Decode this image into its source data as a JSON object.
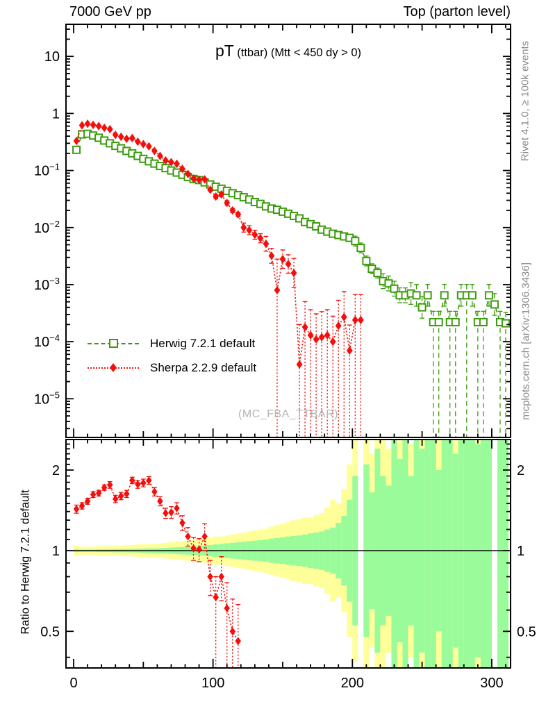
{
  "header": {
    "left": "7000 GeV pp",
    "right": "Top (parton level)"
  },
  "title": {
    "main": "pT",
    "sub": "(ttbar) (Mtt < 450 dy > 0)"
  },
  "watermark": "(MC_FBA_TTBAR)",
  "ratio_axis_label": "Ratio to Herwig 7.2.1 default",
  "side": {
    "rivet": "Rivet 4.1.0, ≥ 100k events",
    "mcplots": "mcplots.cern.ch [arXiv:1306.3436]"
  },
  "legend": {
    "items": [
      {
        "label": "Herwig 7.2.1 default",
        "marker": "open-square",
        "line": "dashed",
        "color": "#3c9b0d"
      },
      {
        "label": "Sherpa 2.2.9 default",
        "marker": "filled-diamond",
        "line": "dotted",
        "color": "#f20f0c"
      }
    ]
  },
  "chart_data": {
    "type": "scatter",
    "title": "pT (ttbar) (Mtt < 450 dy > 0)",
    "xlabel": "",
    "ylabel": "",
    "xlim": [
      -5.5,
      313.5
    ],
    "x_major_ticks": [
      0,
      100,
      200,
      300
    ],
    "x_minor_step": 10,
    "main_panel": {
      "yscale": "log",
      "ylim": [
        2.1e-06,
        36.5
      ],
      "y_tick_labels": [
        {
          "v": 10,
          "base": "10",
          "exp": ""
        },
        {
          "v": 1,
          "base": "1",
          "exp": ""
        },
        {
          "v": 0.1,
          "base": "10",
          "exp": "−1"
        },
        {
          "v": 0.01,
          "base": "10",
          "exp": "−2"
        },
        {
          "v": 0.001,
          "base": "10",
          "exp": "−3"
        },
        {
          "v": 0.0001,
          "base": "10",
          "exp": "−4"
        },
        {
          "v": 1e-05,
          "base": "10",
          "exp": "−5"
        }
      ]
    },
    "bin_width": 4,
    "series": [
      {
        "name": "Herwig 7.2.1 default",
        "color": "#3c9b0d",
        "marker": "open-square",
        "line": "dashed",
        "x_start": 2,
        "x_step": 4,
        "y": [
          0.23,
          0.43,
          0.44,
          0.41,
          0.375,
          0.335,
          0.3,
          0.27,
          0.245,
          0.22,
          0.2,
          0.18,
          0.16,
          0.145,
          0.132,
          0.12,
          0.11,
          0.1,
          0.092,
          0.084,
          0.077,
          0.071,
          0.068,
          0.062,
          0.057,
          0.052,
          0.048,
          0.044,
          0.04,
          0.037,
          0.034,
          0.031,
          0.028,
          0.026,
          0.0235,
          0.0215,
          0.0205,
          0.019,
          0.0175,
          0.016,
          0.0145,
          0.0125,
          0.0115,
          0.0105,
          0.0092,
          0.0085,
          0.0078,
          0.0074,
          0.007,
          0.0066,
          0.0058,
          0.0044,
          0.0026,
          0.0019,
          0.0016,
          0.00115,
          0.00105,
          0.00085,
          0.00065,
          0.00065,
          0.0007,
          0.00065,
          0.0004,
          0.00065,
          0.00022,
          0.00022,
          0.00065,
          0.00022,
          0.00022,
          0.00065,
          0.00065,
          0.00065,
          0.00022,
          0.00022,
          0.00065,
          0.00045,
          0.00022,
          0.00021
        ],
        "rel_err": [
          0.02,
          0.02,
          0.02,
          0.02,
          0.02,
          0.02,
          0.02,
          0.02,
          0.02,
          0.02,
          0.025,
          0.025,
          0.025,
          0.025,
          0.025,
          0.025,
          0.025,
          0.025,
          0.025,
          0.025,
          0.03,
          0.03,
          0.03,
          0.03,
          0.03,
          0.03,
          0.03,
          0.03,
          0.03,
          0.03,
          0.05,
          0.05,
          0.05,
          0.05,
          0.05,
          0.05,
          0.05,
          0.05,
          0.09,
          0.09,
          0.09,
          0.09,
          0.09,
          0.09,
          0.09,
          0.14,
          0.14,
          0.14,
          0.14,
          0.14,
          0.22,
          0.22,
          0.22,
          0.22,
          0.22,
          0.35,
          0.35,
          0.35,
          0.35,
          0.35,
          0.55,
          0.55,
          0.55,
          0.55,
          0.55,
          0.55,
          0.55,
          0.55,
          0.55,
          0.55,
          0.55,
          0.55,
          0.55,
          0.55,
          0.55,
          0.55,
          0.55,
          0.55
        ],
        "deep_lo": [
          64,
          65,
          67,
          68,
          70,
          72,
          73,
          76,
          77
        ]
      },
      {
        "name": "Sherpa 2.2.9 default",
        "color": "#f20f0c",
        "marker": "filled-diamond",
        "line": "dotted",
        "x_start": 2,
        "x_step": 4,
        "y": [
          0.33,
          0.62,
          0.66,
          0.63,
          0.6,
          0.56,
          0.53,
          0.42,
          0.39,
          0.36,
          0.37,
          0.32,
          0.29,
          0.265,
          0.22,
          0.18,
          0.15,
          0.14,
          0.131,
          0.107,
          0.087,
          0.072,
          0.069,
          0.07,
          0.046,
          0.035,
          0.038,
          0.027,
          0.02,
          0.017,
          0.01,
          0.009,
          0.0075,
          0.0065,
          0.0052,
          0.0032,
          0.0008,
          0.0028,
          0.0023,
          0.0016,
          4e-05,
          0.00018,
          0.00013,
          0.00011,
          0.00012,
          0.00013,
          0.0001,
          0.00019,
          0.00027,
          7e-05,
          0.00024,
          0.00024
        ],
        "rel_err": [
          0.015,
          0.015,
          0.015,
          0.015,
          0.015,
          0.015,
          0.015,
          0.015,
          0.015,
          0.015,
          0.015,
          0.015,
          0.015,
          0.015,
          0.015,
          0.025,
          0.025,
          0.025,
          0.025,
          0.025,
          0.045,
          0.045,
          0.045,
          0.045,
          0.045,
          0.09,
          0.09,
          0.09,
          0.09,
          0.09,
          0.2,
          0.2,
          0.2,
          0.2,
          0.35,
          0.35,
          2.5,
          0.45,
          0.45,
          0.8,
          4,
          1.8,
          1.8,
          1.8,
          1.8,
          1.8,
          1.8,
          1.8,
          1.8,
          1.8,
          1.8,
          1.8
        ],
        "deep_lo": [
          36,
          40,
          41,
          42,
          43,
          44,
          45,
          46,
          47,
          48,
          49,
          50,
          51
        ]
      }
    ],
    "ratio_panel": {
      "yscale": "log",
      "ylim": [
        0.365,
        2.6
      ],
      "y_tick_labels": [
        "2",
        "1",
        "0.5"
      ],
      "y_tick_values": [
        2,
        1,
        0.5
      ],
      "reference_line": 1,
      "points": {
        "x_start": 2,
        "x_step": 4,
        "y": [
          1.43,
          1.47,
          1.53,
          1.62,
          1.64,
          1.72,
          1.76,
          1.56,
          1.6,
          1.63,
          1.83,
          1.77,
          1.79,
          1.83,
          1.66,
          1.53,
          1.38,
          1.39,
          1.44,
          1.27,
          1.13,
          1.02,
          1.01,
          1.13,
          0.8,
          0.67,
          0.8,
          0.61,
          0.5,
          0.46
        ],
        "err": [
          0.05,
          0.04,
          0.04,
          0.04,
          0.04,
          0.04,
          0.05,
          0.05,
          0.05,
          0.05,
          0.05,
          0.06,
          0.06,
          0.06,
          0.06,
          0.06,
          0.06,
          0.07,
          0.07,
          0.08,
          0.09,
          0.1,
          0.1,
          0.13,
          0.12,
          0.13,
          0.15,
          0.15,
          0.16,
          0.17
        ],
        "deep_lo": [
          25,
          27,
          28,
          29
        ]
      },
      "band_colors": {
        "outer": "#ffff99",
        "inner": "#99fb99"
      },
      "band_x_start": 2,
      "band_x_step": 4,
      "band_outer_factor": [
        1.045,
        1.035,
        1.035,
        1.035,
        1.04,
        1.04,
        1.04,
        1.045,
        1.045,
        1.05,
        1.05,
        1.055,
        1.055,
        1.06,
        1.06,
        1.065,
        1.07,
        1.075,
        1.08,
        1.085,
        1.09,
        1.1,
        1.1,
        1.11,
        1.12,
        1.13,
        1.13,
        1.14,
        1.15,
        1.16,
        1.17,
        1.18,
        1.19,
        1.2,
        1.21,
        1.23,
        1.25,
        1.26,
        1.28,
        1.3,
        1.31,
        1.33,
        1.33,
        1.36,
        1.38,
        1.45,
        1.55,
        1.5,
        1.7,
        2.1,
        2.6,
        0,
        2.8,
        2.3,
        2.8,
        2.8,
        2.4,
        2.8,
        2.8,
        2.8,
        2.5,
        2.8,
        2.8,
        2.8,
        2.8,
        2.8,
        2.8,
        2.8,
        2.8,
        2.8,
        2.8,
        2.8,
        2.8,
        2.8,
        2.8,
        0,
        2.8,
        2.8
      ],
      "band_inner_factor": [
        1.012,
        1.01,
        1.01,
        1.01,
        1.012,
        1.012,
        1.012,
        1.014,
        1.014,
        1.015,
        1.015,
        1.016,
        1.018,
        1.02,
        1.02,
        1.022,
        1.025,
        1.027,
        1.03,
        1.032,
        1.035,
        1.04,
        1.04,
        1.045,
        1.05,
        1.055,
        1.06,
        1.065,
        1.07,
        1.075,
        1.08,
        1.085,
        1.09,
        1.095,
        1.1,
        1.11,
        1.115,
        1.12,
        1.13,
        1.135,
        1.14,
        1.15,
        1.16,
        1.17,
        1.18,
        1.2,
        1.22,
        1.27,
        1.35,
        1.55,
        1.9,
        0,
        2.1,
        1.65,
        2.4,
        1.9,
        1.75,
        2.8,
        2.2,
        2.8,
        1.9,
        2.8,
        2.4,
        2.8,
        2.8,
        2.0,
        2.8,
        2.8,
        2.3,
        2.8,
        2.8,
        2.8,
        2.5,
        2.8,
        2.8,
        0,
        2.8,
        2.8
      ]
    }
  }
}
